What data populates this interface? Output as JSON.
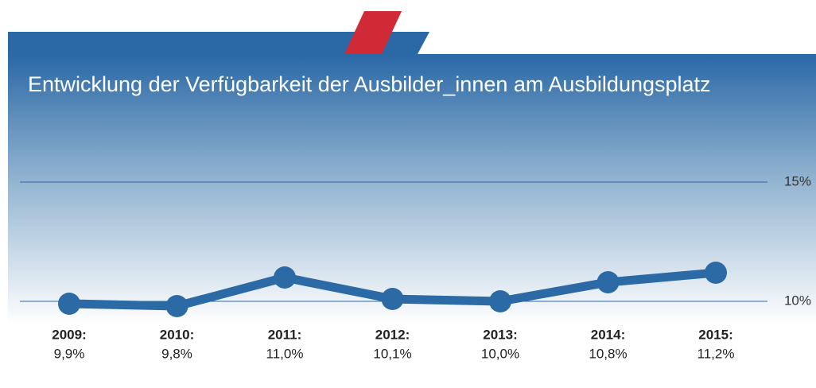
{
  "chart_data": {
    "type": "line",
    "title": "Entwicklung der Verfügbarkeit der Ausbilder_innen am Ausbildungsplatz",
    "categories": [
      "2009:",
      "2010:",
      "2011:",
      "2012:",
      "2013:",
      "2014:",
      "2015:"
    ],
    "values": [
      9.9,
      9.8,
      11.0,
      10.1,
      10.0,
      10.8,
      11.2
    ],
    "value_labels": [
      "9,9%",
      "9,8%",
      "11,0%",
      "10,1%",
      "10,0%",
      "10,8%",
      "11,2%"
    ],
    "color": "#2b6aa4",
    "ylim": [
      10,
      15
    ],
    "yticks": [
      {
        "value": 10,
        "label": "10%"
      },
      {
        "value": 15,
        "label": "15%"
      }
    ],
    "grid": true
  }
}
